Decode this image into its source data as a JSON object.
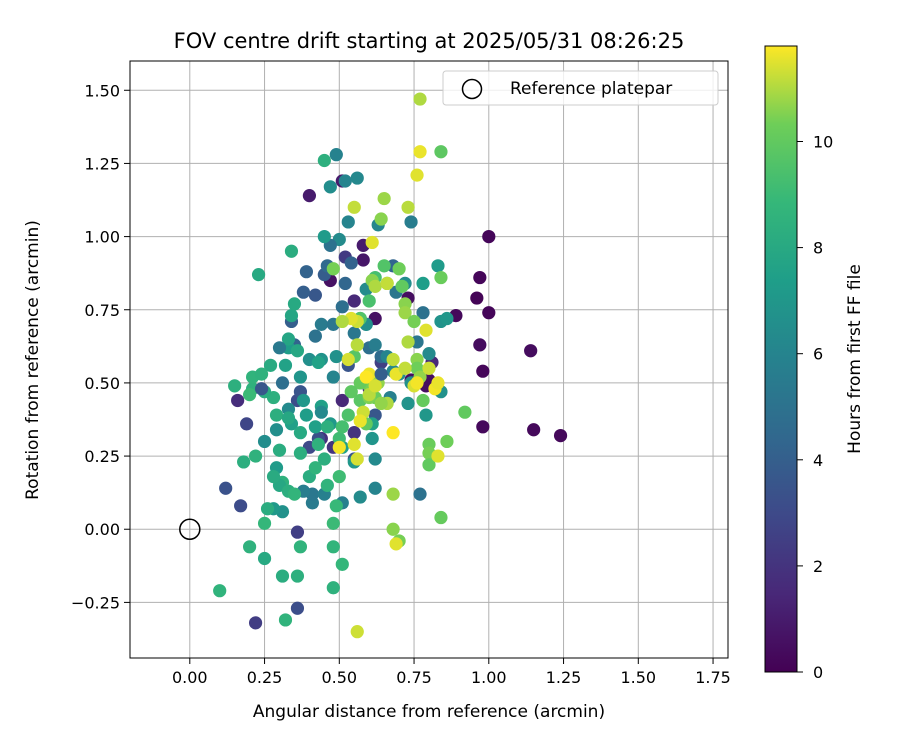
{
  "chart_data": {
    "type": "scatter",
    "title": "FOV centre drift starting at 2025/05/31 08:26:25",
    "xlabel": "Angular distance from reference (arcmin)",
    "ylabel": "Rotation from reference (arcmin)",
    "xlim": [
      -0.2,
      1.8
    ],
    "ylim": [
      -0.44,
      1.6
    ],
    "xticks": [
      0.0,
      0.25,
      0.5,
      0.75,
      1.0,
      1.25,
      1.5,
      1.75
    ],
    "xtick_labels": [
      "0.00",
      "0.25",
      "0.50",
      "0.75",
      "1.00",
      "1.25",
      "1.50",
      "1.75"
    ],
    "yticks": [
      -0.25,
      0.0,
      0.25,
      0.5,
      0.75,
      1.0,
      1.25,
      1.5
    ],
    "ytick_labels": [
      "−0.25",
      "0.00",
      "0.25",
      "0.50",
      "0.75",
      "1.00",
      "1.25",
      "1.50"
    ],
    "grid": true,
    "legend": {
      "placement": "top-right",
      "entries": [
        "Reference platepar"
      ]
    },
    "reference_point": {
      "x": 0.0,
      "y": 0.0
    },
    "colorbar": {
      "label": "Hours from first FF file",
      "colormap": "viridis",
      "range": [
        0,
        11.8
      ],
      "ticks": [
        0,
        2,
        4,
        6,
        8,
        10
      ],
      "tick_labels": [
        "0",
        "2",
        "4",
        "6",
        "8",
        "10"
      ]
    },
    "points": [
      [
        1.0,
        1.0,
        0.2
      ],
      [
        0.97,
        0.86,
        0.2
      ],
      [
        0.96,
        0.79,
        0.1
      ],
      [
        1.0,
        0.74,
        0.2
      ],
      [
        0.89,
        0.73,
        0.3
      ],
      [
        1.14,
        0.61,
        0.4
      ],
      [
        0.97,
        0.63,
        0.4
      ],
      [
        0.98,
        0.54,
        0.2
      ],
      [
        1.15,
        0.34,
        0.3
      ],
      [
        1.24,
        0.32,
        0.3
      ],
      [
        0.98,
        0.35,
        0.3
      ],
      [
        0.79,
        0.49,
        0.5
      ],
      [
        0.8,
        0.51,
        0.5
      ],
      [
        0.74,
        0.51,
        0.5
      ],
      [
        0.73,
        0.79,
        0.5
      ],
      [
        0.62,
        0.72,
        0.6
      ],
      [
        0.58,
        0.92,
        0.8
      ],
      [
        0.58,
        0.97,
        1.0
      ],
      [
        0.51,
        1.19,
        1.0
      ],
      [
        0.4,
        1.14,
        1.0
      ],
      [
        0.47,
        0.85,
        0.6
      ],
      [
        0.55,
        0.78,
        1.5
      ],
      [
        0.52,
        0.93,
        2.3
      ],
      [
        0.81,
        0.57,
        1.5
      ],
      [
        0.6,
        0.48,
        1.6
      ],
      [
        0.64,
        0.57,
        2.5
      ],
      [
        0.51,
        0.44,
        1.5
      ],
      [
        0.44,
        0.31,
        1.9
      ],
      [
        0.55,
        0.33,
        2.0
      ],
      [
        0.48,
        0.28,
        2.0
      ],
      [
        0.16,
        0.44,
        1.7
      ],
      [
        0.36,
        -0.01,
        2.5
      ],
      [
        0.22,
        -0.32,
        2.4
      ],
      [
        0.36,
        -0.27,
        3.2
      ],
      [
        0.4,
        0.28,
        3.0
      ],
      [
        0.36,
        0.44,
        3.1
      ],
      [
        0.37,
        0.47,
        3.5
      ],
      [
        0.43,
        0.31,
        3.3
      ],
      [
        0.53,
        0.56,
        3.5
      ],
      [
        0.55,
        0.24,
        3.5
      ],
      [
        0.62,
        0.39,
        3.6
      ],
      [
        0.45,
        0.87,
        3.9
      ],
      [
        0.42,
        0.8,
        3.6
      ],
      [
        0.54,
        0.91,
        4.2
      ],
      [
        0.6,
        0.62,
        4.8
      ],
      [
        0.64,
        0.59,
        4.6
      ],
      [
        0.68,
        0.9,
        4.3
      ],
      [
        0.69,
        0.81,
        5.2
      ],
      [
        0.78,
        0.74,
        5.0
      ],
      [
        0.76,
        0.64,
        5.2
      ],
      [
        0.52,
        1.19,
        6.0
      ],
      [
        0.56,
        1.2,
        6.2
      ],
      [
        0.49,
        1.28,
        5.9
      ],
      [
        0.47,
        1.17,
        6.5
      ],
      [
        0.53,
        1.05,
        6.0
      ],
      [
        0.5,
        0.99,
        6.4
      ],
      [
        0.47,
        0.97,
        5.0
      ],
      [
        0.46,
        0.9,
        4.6
      ],
      [
        0.39,
        0.88,
        4.2
      ],
      [
        0.38,
        0.81,
        4.0
      ],
      [
        0.34,
        0.71,
        4.0
      ],
      [
        0.35,
        0.63,
        4.3
      ],
      [
        0.42,
        0.66,
        5.0
      ],
      [
        0.44,
        0.7,
        5.5
      ],
      [
        0.48,
        0.7,
        5.2
      ],
      [
        0.51,
        0.76,
        4.8
      ],
      [
        0.52,
        0.84,
        4.4
      ],
      [
        0.55,
        0.67,
        5.3
      ],
      [
        0.59,
        0.7,
        6.0
      ],
      [
        0.62,
        0.63,
        5.6
      ],
      [
        0.66,
        0.59,
        6.0
      ],
      [
        0.68,
        0.54,
        6.2
      ],
      [
        0.7,
        0.53,
        6.5
      ],
      [
        0.67,
        0.45,
        5.8
      ],
      [
        0.74,
        0.5,
        6.6
      ],
      [
        0.73,
        0.43,
        6.8
      ],
      [
        0.79,
        0.39,
        7.0
      ],
      [
        0.84,
        0.47,
        6.7
      ],
      [
        0.8,
        0.6,
        6.3
      ],
      [
        0.84,
        0.71,
        6.8
      ],
      [
        0.86,
        0.72,
        7.0
      ],
      [
        0.83,
        0.9,
        7.2
      ],
      [
        0.78,
        0.84,
        7.4
      ],
      [
        0.72,
        0.84,
        6.5
      ],
      [
        0.74,
        1.05,
        5.6
      ],
      [
        0.63,
        1.04,
        6.1
      ],
      [
        0.59,
        0.82,
        6.4
      ],
      [
        0.59,
        0.7,
        6.6
      ],
      [
        0.57,
        0.72,
        6.1
      ],
      [
        0.49,
        0.59,
        6.7
      ],
      [
        0.44,
        0.58,
        6.8
      ],
      [
        0.4,
        0.58,
        6.6
      ],
      [
        0.38,
        0.44,
        7.0
      ],
      [
        0.39,
        0.39,
        7.3
      ],
      [
        0.42,
        0.35,
        7.5
      ],
      [
        0.44,
        0.42,
        7.5
      ],
      [
        0.47,
        0.36,
        7.1
      ],
      [
        0.51,
        0.28,
        7.5
      ],
      [
        0.55,
        0.23,
        7.0
      ],
      [
        0.61,
        0.36,
        7.6
      ],
      [
        0.61,
        0.31,
        6.9
      ],
      [
        0.62,
        0.24,
        6.3
      ],
      [
        0.62,
        0.14,
        6.0
      ],
      [
        0.57,
        0.11,
        6.4
      ],
      [
        0.51,
        0.09,
        5.8
      ],
      [
        0.41,
        0.09,
        5.5
      ],
      [
        0.41,
        0.12,
        5.3
      ],
      [
        0.45,
        0.12,
        5.8
      ],
      [
        0.38,
        0.13,
        5.6
      ],
      [
        0.31,
        0.06,
        6.7
      ],
      [
        0.28,
        0.07,
        7.1
      ],
      [
        0.29,
        0.21,
        7.2
      ],
      [
        0.29,
        0.34,
        6.6
      ],
      [
        0.33,
        0.41,
        6.3
      ],
      [
        0.34,
        0.36,
        7.5
      ],
      [
        0.37,
        0.52,
        6.9
      ],
      [
        0.32,
        0.56,
        7.6
      ],
      [
        0.33,
        0.62,
        7.3
      ],
      [
        0.34,
        0.73,
        7.8
      ],
      [
        0.35,
        0.77,
        8.0
      ],
      [
        0.34,
        0.95,
        8.2
      ],
      [
        0.23,
        0.87,
        8.0
      ],
      [
        0.45,
        1.26,
        8.4
      ],
      [
        0.45,
        1.0,
        7.2
      ],
      [
        0.33,
        0.65,
        7.8
      ],
      [
        0.43,
        0.57,
        7.6
      ],
      [
        0.36,
        0.61,
        7.9
      ],
      [
        0.27,
        0.56,
        8.1
      ],
      [
        0.28,
        0.45,
        8.4
      ],
      [
        0.21,
        0.48,
        8.5
      ],
      [
        0.15,
        0.49,
        8.4
      ],
      [
        0.21,
        0.52,
        8.6
      ],
      [
        0.24,
        0.53,
        8.5
      ],
      [
        0.25,
        0.47,
        8.2
      ],
      [
        0.29,
        0.39,
        8.3
      ],
      [
        0.33,
        0.38,
        7.9
      ],
      [
        0.3,
        0.27,
        8.2
      ],
      [
        0.37,
        0.26,
        8.3
      ],
      [
        0.37,
        0.33,
        8.0
      ],
      [
        0.43,
        0.29,
        8.5
      ],
      [
        0.46,
        0.35,
        8.4
      ],
      [
        0.45,
        0.24,
        8.3
      ],
      [
        0.4,
        0.18,
        8.2
      ],
      [
        0.42,
        0.21,
        8.6
      ],
      [
        0.31,
        0.16,
        8.5
      ],
      [
        0.3,
        0.15,
        7.9
      ],
      [
        0.28,
        0.18,
        8.1
      ],
      [
        0.33,
        0.13,
        8.3
      ],
      [
        0.35,
        0.12,
        8.7
      ],
      [
        0.46,
        0.15,
        8.6
      ],
      [
        0.49,
        0.08,
        8.9
      ],
      [
        0.48,
        -0.06,
        8.7
      ],
      [
        0.37,
        -0.06,
        8.6
      ],
      [
        0.36,
        -0.16,
        8.4
      ],
      [
        0.31,
        -0.16,
        8.2
      ],
      [
        0.32,
        -0.31,
        8.6
      ],
      [
        0.25,
        -0.1,
        8.0
      ],
      [
        0.2,
        -0.06,
        8.5
      ],
      [
        0.25,
        0.02,
        8.8
      ],
      [
        0.26,
        0.07,
        8.2
      ],
      [
        0.18,
        0.23,
        8.3
      ],
      [
        0.22,
        0.25,
        8.5
      ],
      [
        0.1,
        -0.21,
        8.6
      ],
      [
        0.48,
        -0.2,
        8.5
      ],
      [
        0.51,
        -0.12,
        8.8
      ],
      [
        0.48,
        0.02,
        9.0
      ],
      [
        0.5,
        0.18,
        9.1
      ],
      [
        0.5,
        0.31,
        9.1
      ],
      [
        0.51,
        0.35,
        9.3
      ],
      [
        0.53,
        0.39,
        9.5
      ],
      [
        0.57,
        0.44,
        9.8
      ],
      [
        0.59,
        0.36,
        10.0
      ],
      [
        0.62,
        0.45,
        10.2
      ],
      [
        0.62,
        0.49,
        10.5
      ],
      [
        0.63,
        0.5,
        10.7
      ],
      [
        0.6,
        0.49,
        10.4
      ],
      [
        0.57,
        0.5,
        10.1
      ],
      [
        0.54,
        0.47,
        9.9
      ],
      [
        0.55,
        0.59,
        9.7
      ],
      [
        0.57,
        0.72,
        9.6
      ],
      [
        0.6,
        0.78,
        9.4
      ],
      [
        0.62,
        0.86,
        9.3
      ],
      [
        0.65,
        0.9,
        9.6
      ],
      [
        0.66,
        0.84,
        9.9
      ],
      [
        0.7,
        0.89,
        10.3
      ],
      [
        0.71,
        0.83,
        10.0
      ],
      [
        0.72,
        0.77,
        10.6
      ],
      [
        0.72,
        0.74,
        10.8
      ],
      [
        0.75,
        0.71,
        10.4
      ],
      [
        0.76,
        0.58,
        10.6
      ],
      [
        0.76,
        0.55,
        10.3
      ],
      [
        0.77,
        0.52,
        10.7
      ],
      [
        0.78,
        0.44,
        10.1
      ],
      [
        0.8,
        0.29,
        10.2
      ],
      [
        0.8,
        0.26,
        10.4
      ],
      [
        0.8,
        0.22,
        10.0
      ],
      [
        0.86,
        0.3,
        10.3
      ],
      [
        0.92,
        0.4,
        10.0
      ],
      [
        0.84,
        0.04,
        10.1
      ],
      [
        0.84,
        0.86,
        10.2
      ],
      [
        0.84,
        1.29,
        9.9
      ],
      [
        0.77,
        1.29,
        11.6
      ],
      [
        0.77,
        1.47,
        11.0
      ],
      [
        0.76,
        1.21,
        11.5
      ],
      [
        0.73,
        1.1,
        11.1
      ],
      [
        0.65,
        1.13,
        10.8
      ],
      [
        0.64,
        1.06,
        10.6
      ],
      [
        0.61,
        0.98,
        11.5
      ],
      [
        0.55,
        1.1,
        11.2
      ],
      [
        0.48,
        0.89,
        10.4
      ],
      [
        0.61,
        0.85,
        10.6
      ],
      [
        0.62,
        0.83,
        11.0
      ],
      [
        0.66,
        0.84,
        11.2
      ],
      [
        0.56,
        0.71,
        11.3
      ],
      [
        0.54,
        0.72,
        11.5
      ],
      [
        0.51,
        0.71,
        11.0
      ],
      [
        0.53,
        0.58,
        11.4
      ],
      [
        0.56,
        0.63,
        11.1
      ],
      [
        0.6,
        0.53,
        11.6
      ],
      [
        0.69,
        0.53,
        11.6
      ],
      [
        0.72,
        0.55,
        11.2
      ],
      [
        0.75,
        0.49,
        11.4
      ],
      [
        0.8,
        0.55,
        11.3
      ],
      [
        0.82,
        0.48,
        11.7
      ],
      [
        0.79,
        0.68,
        11.5
      ],
      [
        0.73,
        0.64,
        11.0
      ],
      [
        0.68,
        0.58,
        11.2
      ],
      [
        0.66,
        0.43,
        11.0
      ],
      [
        0.64,
        0.43,
        10.7
      ],
      [
        0.6,
        0.45,
        10.5
      ],
      [
        0.58,
        0.4,
        11.3
      ],
      [
        0.57,
        0.37,
        11.6
      ],
      [
        0.55,
        0.29,
        11.5
      ],
      [
        0.5,
        0.28,
        11.7
      ],
      [
        0.56,
        0.24,
        11.4
      ],
      [
        0.68,
        0.33,
        11.8
      ],
      [
        0.68,
        0.12,
        10.8
      ],
      [
        0.68,
        0.0,
        10.6
      ],
      [
        0.7,
        -0.04,
        10.4
      ],
      [
        0.69,
        -0.05,
        11.5
      ],
      [
        0.56,
        -0.35,
        11.3
      ],
      [
        0.83,
        0.25,
        11.5
      ],
      [
        0.83,
        0.5,
        11.6
      ],
      [
        0.76,
        0.5,
        11.7
      ],
      [
        0.59,
        0.52,
        11.8
      ],
      [
        0.6,
        0.46,
        11.1
      ],
      [
        0.62,
        0.49,
        11.4
      ],
      [
        0.77,
        0.12,
        5.0
      ],
      [
        0.19,
        0.36,
        2.8
      ],
      [
        0.24,
        0.48,
        3.6
      ],
      [
        0.3,
        0.62,
        5.4
      ],
      [
        0.44,
        0.4,
        6.2
      ],
      [
        0.31,
        0.5,
        4.8
      ],
      [
        0.48,
        0.52,
        6.0
      ],
      [
        0.25,
        0.3,
        6.5
      ],
      [
        0.64,
        0.53,
        4.0
      ],
      [
        0.17,
        0.08,
        3.1
      ],
      [
        0.12,
        0.14,
        3.4
      ],
      [
        0.2,
        0.46,
        9.0
      ]
    ]
  }
}
